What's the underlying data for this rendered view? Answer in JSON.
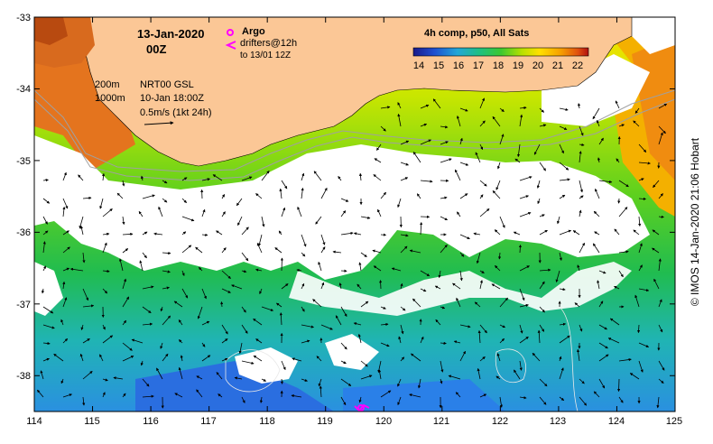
{
  "title": {
    "date": "13-Jan-2020",
    "time": "00Z"
  },
  "legend": {
    "argo": "Argo",
    "drifters": "drifters@12h",
    "drifters_to": "to 13/01 12Z",
    "isobath_200": "200m",
    "isobath_1000": "1000m",
    "product": "NRT00 GSL",
    "product_date": "10-Jan 18:00Z",
    "speed_scale": "0.5m/s (1kt 24h)"
  },
  "colorbar": {
    "title": "4h comp, p50, All Sats",
    "ticks": [
      "14",
      "15",
      "16",
      "17",
      "18",
      "19",
      "20",
      "21",
      "22"
    ],
    "range": [
      13.5,
      22.8
    ]
  },
  "axes": {
    "lon_ticks": [
      "114",
      "115",
      "116",
      "117",
      "118",
      "119",
      "120",
      "121",
      "122",
      "123",
      "124",
      "125"
    ],
    "lat_ticks": [
      "-33",
      "-34",
      "-35",
      "-36",
      "-37",
      "-38"
    ],
    "lon_range": [
      114,
      125
    ],
    "lat_range": [
      -38.5,
      -33
    ]
  },
  "credit": "© IMOS 14-Jan-2020 21:06 Hobart",
  "colors": {
    "land": "#fbc796",
    "argo": "#ff00ff",
    "isobath": "#a0a0a0"
  }
}
